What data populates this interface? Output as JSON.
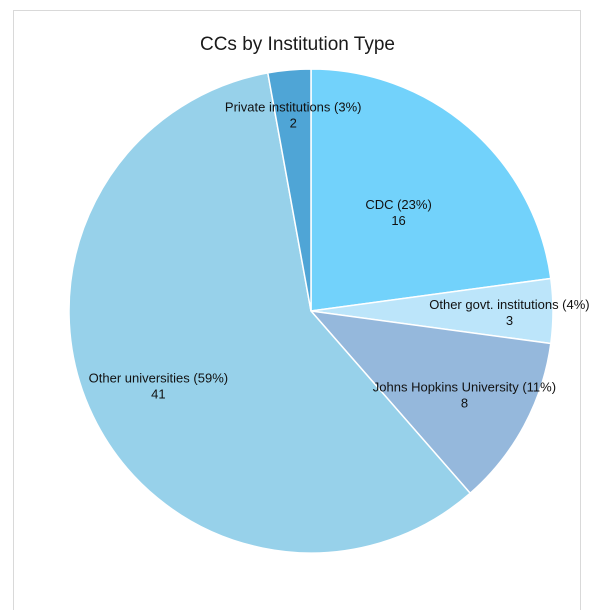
{
  "chart_data": {
    "type": "pie",
    "title": "CCs by Institution Type",
    "slices": [
      {
        "label": "CDC (23%)",
        "value": 16,
        "value_label": "16",
        "color": "#72D2FB"
      },
      {
        "label": "Other govt. institutions (4%)",
        "value": 3,
        "value_label": "3",
        "color": "#BCE5FA"
      },
      {
        "label": "Johns Hopkins University (11%)",
        "value": 8,
        "value_label": "8",
        "color": "#95B8DC"
      },
      {
        "label": "Other universities (59%)",
        "value": 41,
        "value_label": "41",
        "color": "#97D1EA"
      },
      {
        "label": "Private institutions (3%)",
        "value": 2,
        "value_label": "2",
        "color": "#4FA5D6"
      }
    ],
    "start": "top",
    "direction": "clockwise",
    "slice_border_color": "#ffffff"
  }
}
